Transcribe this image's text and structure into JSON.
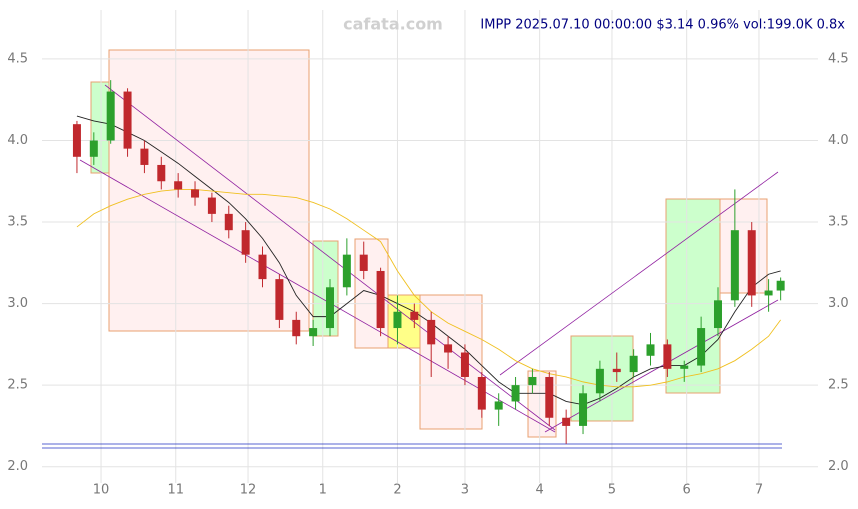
{
  "chart_data": {
    "type": "candlestick",
    "title": "IMPP 2025.07.10 00:00:00 $3.14 0.96% vol:199.0K 0.8x",
    "watermark": "cafata.com",
    "x": [
      -10,
      -3,
      4,
      11,
      18,
      25,
      32,
      39,
      46,
      53,
      60,
      67,
      74,
      81,
      88,
      95,
      102,
      109,
      116,
      123,
      130,
      137,
      144,
      151,
      158,
      165,
      172,
      179,
      186,
      193,
      200,
      207,
      214,
      221,
      228,
      235,
      242,
      249,
      256,
      263,
      270,
      277,
      282
    ],
    "open": [
      4.1,
      3.9,
      4.0,
      4.3,
      3.95,
      3.85,
      3.75,
      3.7,
      3.65,
      3.55,
      3.45,
      3.3,
      3.15,
      2.9,
      2.8,
      2.85,
      3.1,
      3.3,
      3.2,
      2.85,
      2.95,
      2.9,
      2.75,
      2.7,
      2.55,
      2.35,
      2.4,
      2.5,
      2.55,
      2.3,
      2.25,
      2.45,
      2.6,
      2.58,
      2.68,
      2.75,
      2.6,
      2.62,
      2.85,
      3.02,
      3.45,
      3.05,
      3.08
    ],
    "high": [
      4.12,
      4.05,
      4.37,
      4.32,
      4.0,
      3.9,
      3.8,
      3.75,
      3.68,
      3.6,
      3.5,
      3.35,
      3.18,
      2.95,
      2.9,
      3.15,
      3.4,
      3.38,
      3.22,
      3.05,
      3.0,
      2.95,
      2.8,
      2.75,
      2.58,
      2.45,
      2.55,
      2.6,
      2.58,
      2.35,
      2.5,
      2.65,
      2.7,
      2.72,
      2.82,
      2.78,
      2.65,
      2.92,
      3.1,
      3.7,
      3.5,
      3.15,
      3.16
    ],
    "low": [
      3.8,
      3.85,
      3.98,
      3.9,
      3.8,
      3.7,
      3.65,
      3.6,
      3.5,
      3.4,
      3.25,
      3.1,
      2.85,
      2.75,
      2.74,
      2.8,
      3.05,
      3.15,
      2.8,
      2.75,
      2.85,
      2.55,
      2.6,
      2.5,
      2.3,
      2.25,
      2.35,
      2.45,
      2.25,
      2.14,
      2.2,
      2.4,
      2.52,
      2.55,
      2.62,
      2.55,
      2.52,
      2.58,
      2.8,
      2.98,
      2.98,
      2.95,
      3.02
    ],
    "close": [
      3.9,
      4.0,
      4.3,
      3.95,
      3.85,
      3.75,
      3.7,
      3.65,
      3.55,
      3.45,
      3.3,
      3.15,
      2.9,
      2.8,
      2.85,
      3.1,
      3.3,
      3.2,
      2.85,
      2.95,
      2.9,
      2.75,
      2.7,
      2.55,
      2.35,
      2.4,
      2.5,
      2.55,
      2.3,
      2.25,
      2.45,
      2.6,
      2.58,
      2.68,
      2.75,
      2.6,
      2.62,
      2.85,
      3.02,
      3.45,
      3.05,
      3.08,
      3.14
    ],
    "up_color": "#2ca02c",
    "down_color": "#c0282d",
    "lines": [
      {
        "color": "#222222",
        "values": [
          4.15,
          4.12,
          4.1,
          4.05,
          4.0,
          3.93,
          3.86,
          3.78,
          3.7,
          3.62,
          3.52,
          3.4,
          3.25,
          3.05,
          2.92,
          2.92,
          3.0,
          3.08,
          3.05,
          3.0,
          2.95,
          2.88,
          2.8,
          2.72,
          2.62,
          2.52,
          2.45,
          2.45,
          2.45,
          2.4,
          2.38,
          2.42,
          2.48,
          2.55,
          2.6,
          2.62,
          2.62,
          2.68,
          2.78,
          2.95,
          3.1,
          3.18,
          3.2
        ]
      },
      {
        "color": "#f0c020",
        "values": [
          3.47,
          3.55,
          3.6,
          3.64,
          3.67,
          3.69,
          3.7,
          3.7,
          3.69,
          3.68,
          3.67,
          3.67,
          3.66,
          3.65,
          3.62,
          3.58,
          3.52,
          3.45,
          3.38,
          3.2,
          3.05,
          2.95,
          2.88,
          2.83,
          2.78,
          2.72,
          2.65,
          2.6,
          2.57,
          2.55,
          2.52,
          2.5,
          2.49,
          2.49,
          2.5,
          2.52,
          2.55,
          2.57,
          2.6,
          2.65,
          2.72,
          2.8,
          2.9
        ]
      }
    ],
    "xlim": [
      -24.5,
      297.5
    ],
    "xticks": [
      {
        "value": 0,
        "label": "10"
      },
      {
        "value": 31,
        "label": "11"
      },
      {
        "value": 61,
        "label": "12"
      },
      {
        "value": 92,
        "label": "1"
      },
      {
        "value": 123,
        "label": "2"
      },
      {
        "value": 151,
        "label": "3"
      },
      {
        "value": 182,
        "label": "4"
      },
      {
        "value": 212,
        "label": "5"
      },
      {
        "value": 243,
        "label": "6"
      },
      {
        "value": 273,
        "label": "7"
      }
    ],
    "ylim": [
      1.9,
      4.8
    ],
    "yticks": [
      {
        "value": 2.0,
        "label": "2.0"
      },
      2.5,
      {
        "value": 3.0,
        "label": "3.0"
      },
      3.5,
      {
        "value": 4.0,
        "label": "4.0"
      },
      4.5
    ],
    "grid": true
  }
}
